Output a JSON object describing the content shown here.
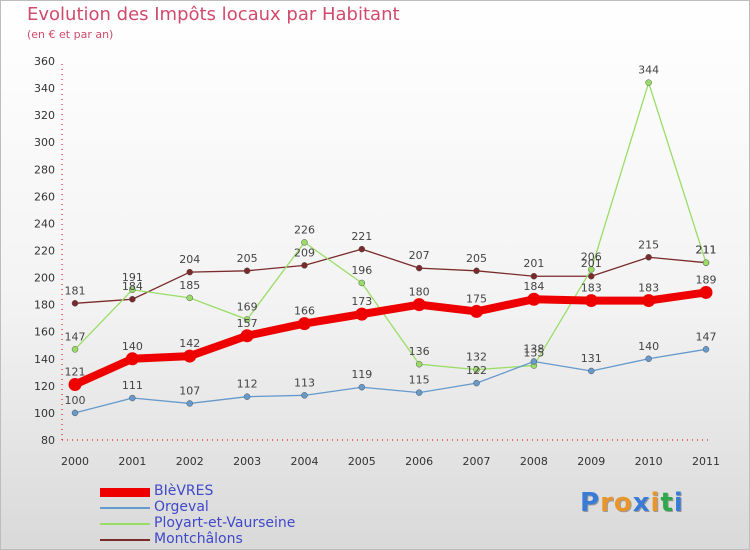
{
  "title": "Evolution des Impôts locaux par Habitant",
  "subtitle": "(en € et par an)",
  "logo": "Proxiti",
  "chart_data": {
    "type": "line",
    "title": "Evolution des Impôts locaux par Habitant",
    "subtitle": "(en € et par an)",
    "xlabel": "",
    "ylabel": "",
    "ylim": [
      80,
      360
    ],
    "ytick_step": 20,
    "grid": false,
    "legend_position": "bottom-left",
    "categories": [
      "2000",
      "2001",
      "2002",
      "2003",
      "2004",
      "2005",
      "2006",
      "2007",
      "2008",
      "2009",
      "2010",
      "2011"
    ],
    "series": [
      {
        "name": "BIèVRES",
        "color": "#ee0000",
        "values": [
          121,
          140,
          142,
          157,
          166,
          173,
          180,
          175,
          184,
          183,
          183,
          189
        ]
      },
      {
        "name": "Orgeval",
        "color": "#6699cc",
        "values": [
          100,
          111,
          107,
          112,
          113,
          119,
          115,
          122,
          138,
          131,
          140,
          147
        ]
      },
      {
        "name": "Ployart-et-Vaurseine",
        "color": "#99dd66",
        "values": [
          147,
          191,
          185,
          169,
          226,
          196,
          136,
          132,
          135,
          206,
          344,
          211
        ]
      },
      {
        "name": "Montchâlons",
        "color": "#7a2a2a",
        "values": [
          181,
          184,
          204,
          205,
          209,
          221,
          207,
          205,
          201,
          201,
          215,
          211
        ]
      }
    ]
  }
}
